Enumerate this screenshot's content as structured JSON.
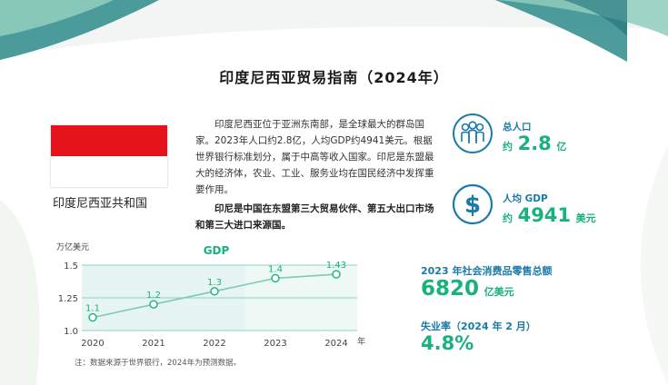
{
  "colors": {
    "teal_dark": "#2e8b8a",
    "teal_light": "#8fcdbd",
    "green": "#19b27b",
    "blue": "#1a7aa8",
    "flag_red": "#e5131b",
    "chart_line": "#8fd2c2",
    "chart_band": "#e6f5f1"
  },
  "title": "印度尼西亚贸易指南（2024年）",
  "flag": {
    "icon": "indonesia-flag",
    "country_name": "印度尼西亚共和国"
  },
  "intro": {
    "paragraph": "印度尼西亚位于亚洲东南部，是全球最大的群岛国家。2023年人口约2.8亿，人均GDP约4941美元。根据世界银行标准划分，属于中高等收入国家。印尼是东盟最大的经济体，农业、工业、服务业均在国民经济中发挥重要作用。",
    "highlight": "印尼是中国在东盟第三大贸易伙伴、第五大出口市场和第三大进口来源国。"
  },
  "stats": {
    "population": {
      "icon": "people-icon",
      "label": "总人口",
      "prefix": "约",
      "value": "2.8",
      "unit": "亿"
    },
    "gdp_per_capita": {
      "icon": "dollar-icon",
      "label": "人均 GDP",
      "prefix": "约",
      "value": "4941",
      "unit": "美元"
    },
    "retail": {
      "label": "2023 年社会消费品零售总额",
      "value": "6820",
      "unit": "亿美元"
    },
    "unemployment": {
      "label": "失业率（2024 年 2 月）",
      "value": "4.8%"
    }
  },
  "chart_data": {
    "type": "line",
    "title": "GDP",
    "ylabel": "万亿美元",
    "xlabel": "年",
    "categories": [
      "2020",
      "2021",
      "2022",
      "2023",
      "2024"
    ],
    "series": [
      {
        "values": [
          1.1,
          1.2,
          1.3,
          1.4,
          1.43
        ]
      }
    ],
    "data_labels": [
      "1.1",
      "1.2",
      "1.3",
      "1.4",
      "1.43"
    ],
    "yticks": [
      "1.0",
      "1.25",
      "1.5"
    ],
    "ylim": [
      1.0,
      1.5
    ],
    "grid": true,
    "forecast_from": "2023"
  },
  "footnote": "注：数据来源于世界银行，2024年为预测数据。"
}
